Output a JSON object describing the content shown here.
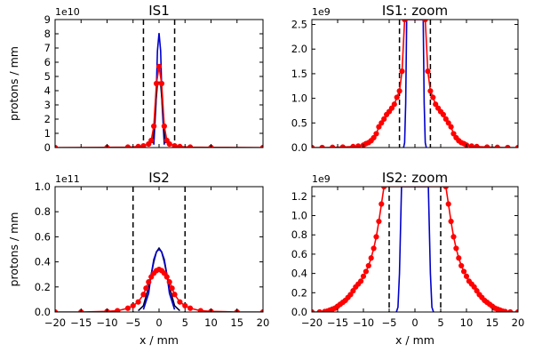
{
  "chart_data": [
    {
      "type": "line",
      "title": "IS1",
      "xlabel": "",
      "ylabel": "protons / mm",
      "offset_text": "1e10",
      "xlim": [
        -20,
        20
      ],
      "ylim": [
        0,
        9
      ],
      "x_ticks": [
        -20,
        -15,
        -10,
        -5,
        0,
        5,
        10,
        15,
        20
      ],
      "y_ticks": [
        0,
        1,
        2,
        3,
        4,
        5,
        6,
        7,
        8,
        9
      ],
      "y_tick_labels": [
        "0",
        "1",
        "2",
        "3",
        "4",
        "5",
        "6",
        "7",
        "8",
        "9"
      ],
      "vlines": [
        -3,
        3
      ],
      "series": [
        {
          "color": "#0000cc",
          "marker": "none",
          "x": [
            -1.0,
            -0.6,
            -0.3,
            0,
            0.3,
            0.6,
            1.0
          ],
          "y": [
            0.2,
            3.0,
            6.8,
            8.05,
            6.8,
            3.0,
            0.2
          ]
        },
        {
          "color": "#000033",
          "marker": "none",
          "x": [
            -1.2,
            -0.6,
            -0.3,
            0,
            0.3,
            0.6,
            1.2
          ],
          "y": [
            0.3,
            3.2,
            4.5,
            4.6,
            4.5,
            3.2,
            0.3
          ]
        },
        {
          "color": "#ff0000",
          "marker": "circle",
          "x": [
            -20,
            -10,
            -6,
            -4,
            -3,
            -2,
            -1.5,
            -1,
            -0.5,
            0,
            0.5,
            1,
            1.5,
            2,
            3,
            4,
            6,
            10,
            20
          ],
          "y": [
            0,
            0.01,
            0.03,
            0.07,
            0.12,
            0.25,
            0.5,
            1.5,
            4.5,
            5.7,
            4.5,
            1.5,
            0.5,
            0.25,
            0.12,
            0.07,
            0.03,
            0.01,
            0
          ]
        }
      ]
    },
    {
      "type": "line",
      "title": "IS1: zoom",
      "xlabel": "",
      "ylabel": "",
      "offset_text": "1e9",
      "xlim": [
        -20,
        20
      ],
      "ylim": [
        0,
        2.6
      ],
      "x_ticks": [
        -20,
        -15,
        -10,
        -5,
        0,
        5,
        10,
        15,
        20
      ],
      "y_ticks": [
        0,
        0.5,
        1.0,
        1.5,
        2.0,
        2.5
      ],
      "y_tick_labels": [
        "0.0",
        "0.5",
        "1.0",
        "1.5",
        "2.0",
        "2.5"
      ],
      "vlines": [
        -3,
        3
      ],
      "series": [
        {
          "color": "#0000cc",
          "marker": "none",
          "x": [
            -2.2,
            -2.0,
            -1.8,
            -1.6,
            1.6,
            1.8,
            2.0,
            2.2
          ],
          "y": [
            0,
            0.1,
            0.9,
            2.6,
            2.6,
            0.9,
            0.1,
            0
          ]
        },
        {
          "color": "#ff0000",
          "marker": "circle",
          "x": [
            -20,
            -18,
            -16,
            -14,
            -12,
            -11,
            -10,
            -9.5,
            -9,
            -8.5,
            -8,
            -7.5,
            -7,
            -6.5,
            -6,
            -5.5,
            -5,
            -4.5,
            -4,
            -3.5,
            -3,
            -2.5,
            -2,
            2,
            2.5,
            3,
            3.5,
            4,
            4.5,
            5,
            5.5,
            6,
            6.5,
            7,
            7.5,
            8,
            8.5,
            9,
            9.5,
            10,
            11,
            12,
            14,
            16,
            18,
            20
          ],
          "y": [
            0,
            0,
            0.004,
            0.01,
            0.02,
            0.03,
            0.05,
            0.08,
            0.1,
            0.14,
            0.2,
            0.28,
            0.42,
            0.5,
            0.58,
            0.67,
            0.73,
            0.8,
            0.88,
            1.02,
            1.15,
            1.55,
            2.6,
            2.6,
            1.55,
            1.15,
            1.02,
            0.88,
            0.8,
            0.73,
            0.67,
            0.58,
            0.5,
            0.42,
            0.28,
            0.2,
            0.14,
            0.1,
            0.08,
            0.05,
            0.03,
            0.02,
            0.01,
            0.004,
            0,
            0
          ]
        }
      ]
    },
    {
      "type": "line",
      "title": "IS2",
      "xlabel": "x / mm",
      "ylabel": "protons / mm",
      "offset_text": "1e11",
      "xlim": [
        -20,
        20
      ],
      "ylim": [
        0,
        1.0
      ],
      "x_ticks": [
        -20,
        -15,
        -10,
        -5,
        0,
        5,
        10,
        15,
        20
      ],
      "y_ticks": [
        0,
        0.2,
        0.4,
        0.6,
        0.8,
        1.0
      ],
      "y_tick_labels": [
        "0.0",
        "0.2",
        "0.4",
        "0.6",
        "0.8",
        "1.0"
      ],
      "vlines": [
        -5,
        5
      ],
      "series": [
        {
          "color": "#000033",
          "marker": "none",
          "x": [
            -4,
            -3,
            -2,
            -1.5,
            -1,
            -0.5,
            0,
            0.5,
            1,
            1.5,
            2,
            3,
            4
          ],
          "y": [
            0.01,
            0.05,
            0.2,
            0.3,
            0.4,
            0.48,
            0.51,
            0.48,
            0.4,
            0.3,
            0.2,
            0.05,
            0.01
          ]
        },
        {
          "color": "#0000cc",
          "marker": "none",
          "x": [
            -3,
            -2,
            -1.5,
            -1,
            -0.5,
            0,
            0.5,
            1,
            1.5,
            2,
            3
          ],
          "y": [
            0.02,
            0.15,
            0.3,
            0.42,
            0.48,
            0.5,
            0.48,
            0.42,
            0.3,
            0.15,
            0.02
          ]
        },
        {
          "color": "#ff0000",
          "marker": "circle",
          "x": [
            -20,
            -15,
            -10,
            -8,
            -6,
            -5,
            -4,
            -3,
            -2.5,
            -2,
            -1.5,
            -1,
            -0.5,
            0,
            0.5,
            1,
            1.5,
            2,
            2.5,
            3,
            4,
            5,
            6,
            8,
            10,
            15,
            20
          ],
          "y": [
            0,
            0,
            0.005,
            0.01,
            0.03,
            0.05,
            0.08,
            0.14,
            0.19,
            0.24,
            0.28,
            0.31,
            0.33,
            0.34,
            0.33,
            0.31,
            0.28,
            0.24,
            0.19,
            0.14,
            0.08,
            0.05,
            0.03,
            0.01,
            0.005,
            0,
            0
          ]
        }
      ]
    },
    {
      "type": "line",
      "title": "IS2: zoom",
      "xlabel": "x / mm",
      "ylabel": "",
      "offset_text": "1e9",
      "xlim": [
        -20,
        20
      ],
      "ylim": [
        0,
        1.3
      ],
      "x_ticks": [
        -20,
        -15,
        -10,
        -5,
        0,
        5,
        10,
        15,
        20
      ],
      "y_ticks": [
        0,
        0.2,
        0.4,
        0.6,
        0.8,
        1.0,
        1.2
      ],
      "y_tick_labels": [
        "0.0",
        "0.2",
        "0.4",
        "0.6",
        "0.8",
        "1.0",
        "1.2"
      ],
      "vlines": [
        -5,
        5
      ],
      "series": [
        {
          "color": "#0000cc",
          "marker": "none",
          "x": [
            -3.6,
            -3.3,
            -3.0,
            -2.6,
            2.6,
            3.0,
            3.3,
            3.6
          ],
          "y": [
            0,
            0.05,
            0.4,
            1.3,
            1.3,
            0.4,
            0.05,
            0
          ]
        },
        {
          "color": "#ff0000",
          "marker": "circle",
          "x": [
            -20,
            -18.5,
            -17.5,
            -17,
            -16.5,
            -16,
            -15.5,
            -15,
            -14.5,
            -14,
            -13.5,
            -13,
            -12.5,
            -12,
            -11.5,
            -11,
            -10.5,
            -10,
            -9.5,
            -9,
            -8.5,
            -8,
            -7.5,
            -7,
            -6.5,
            -6,
            6,
            6.5,
            7,
            7.5,
            8,
            8.5,
            9,
            9.5,
            10,
            10.5,
            11,
            11.5,
            12,
            12.5,
            13,
            13.5,
            14,
            14.5,
            15,
            15.5,
            16,
            16.5,
            17,
            17.5,
            18.5,
            20
          ],
          "y": [
            0,
            0,
            0.005,
            0.01,
            0.02,
            0.03,
            0.04,
            0.06,
            0.08,
            0.1,
            0.12,
            0.15,
            0.18,
            0.22,
            0.26,
            0.29,
            0.32,
            0.37,
            0.42,
            0.48,
            0.56,
            0.66,
            0.78,
            0.94,
            1.12,
            1.3,
            1.3,
            1.12,
            0.94,
            0.78,
            0.66,
            0.56,
            0.48,
            0.42,
            0.37,
            0.32,
            0.29,
            0.26,
            0.22,
            0.18,
            0.15,
            0.12,
            0.1,
            0.08,
            0.06,
            0.04,
            0.03,
            0.02,
            0.01,
            0.005,
            0,
            0
          ]
        }
      ]
    }
  ]
}
